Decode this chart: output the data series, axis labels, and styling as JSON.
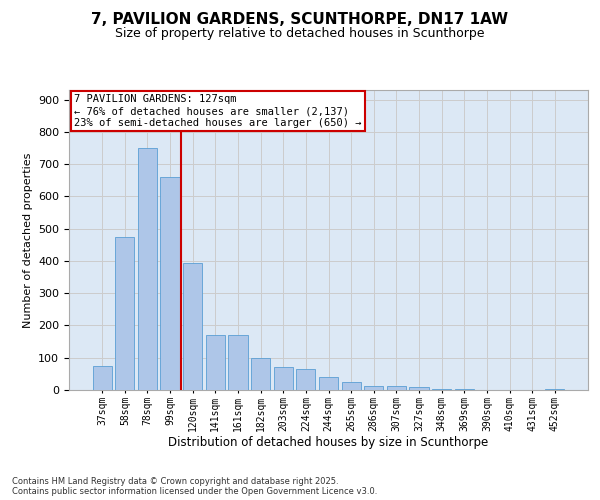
{
  "title_line1": "7, PAVILION GARDENS, SCUNTHORPE, DN17 1AW",
  "title_line2": "Size of property relative to detached houses in Scunthorpe",
  "xlabel": "Distribution of detached houses by size in Scunthorpe",
  "ylabel": "Number of detached properties",
  "categories": [
    "37sqm",
    "58sqm",
    "78sqm",
    "99sqm",
    "120sqm",
    "141sqm",
    "161sqm",
    "182sqm",
    "203sqm",
    "224sqm",
    "244sqm",
    "265sqm",
    "286sqm",
    "307sqm",
    "327sqm",
    "348sqm",
    "369sqm",
    "390sqm",
    "410sqm",
    "431sqm",
    "452sqm"
  ],
  "values": [
    75,
    475,
    750,
    660,
    395,
    170,
    170,
    100,
    70,
    65,
    40,
    25,
    12,
    12,
    8,
    3,
    2,
    0,
    0,
    0,
    3
  ],
  "bar_color": "#aec6e8",
  "bar_edge_color": "#5a9fd4",
  "vline_color": "#cc0000",
  "vline_index": 4,
  "annotation_text": "7 PAVILION GARDENS: 127sqm\n← 76% of detached houses are smaller (2,137)\n23% of semi-detached houses are larger (650) →",
  "annotation_box_color": "#ffffff",
  "annotation_box_edge": "#cc0000",
  "grid_color": "#cccccc",
  "background_color": "#dce8f5",
  "footer_text": "Contains HM Land Registry data © Crown copyright and database right 2025.\nContains public sector information licensed under the Open Government Licence v3.0.",
  "ylim_max": 930,
  "yticks": [
    0,
    100,
    200,
    300,
    400,
    500,
    600,
    700,
    800,
    900
  ]
}
